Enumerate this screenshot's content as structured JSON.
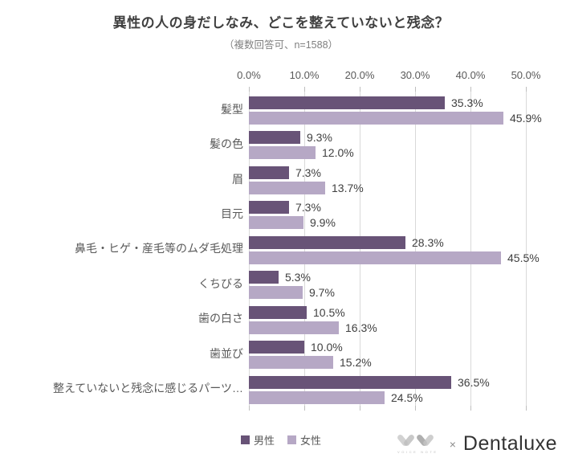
{
  "title": "異性の人の身だしなみ、どこを整えていないと残念？",
  "subtitle": "（複数回答可、n=1588）",
  "chart_data": {
    "type": "bar",
    "orientation": "horizontal",
    "title": "異性の人の身だしなみ、どこを整えていないと残念？",
    "subtitle": "（複数回答可、n=1588）",
    "categories": [
      "髪型",
      "髪の色",
      "眉",
      "目元",
      "鼻毛・ヒゲ・産毛等のムダ毛処理",
      "くちびる",
      "歯の白さ",
      "歯並び",
      "整えていないと残念に感じるパーツ…"
    ],
    "series": [
      {
        "name": "男性",
        "color": "#685377",
        "values": [
          35.3,
          9.3,
          7.3,
          7.3,
          28.3,
          5.3,
          10.5,
          10.0,
          36.5
        ]
      },
      {
        "name": "女性",
        "color": "#b6a8c5",
        "values": [
          45.9,
          12.0,
          13.7,
          9.9,
          45.5,
          9.7,
          16.3,
          15.2,
          24.5
        ]
      }
    ],
    "value_suffix": "%",
    "x_ticks": [
      "0.0%",
      "10.0%",
      "20.0%",
      "30.0%",
      "40.0%",
      "50.0%"
    ],
    "xlim": [
      0,
      50
    ],
    "grid": true,
    "gridline_color": "#d9d9d9",
    "legend_position": "bottom"
  },
  "footer": {
    "logo_text": "VOICE NOTE",
    "separator": "×",
    "brand": "Dentaluxe"
  }
}
